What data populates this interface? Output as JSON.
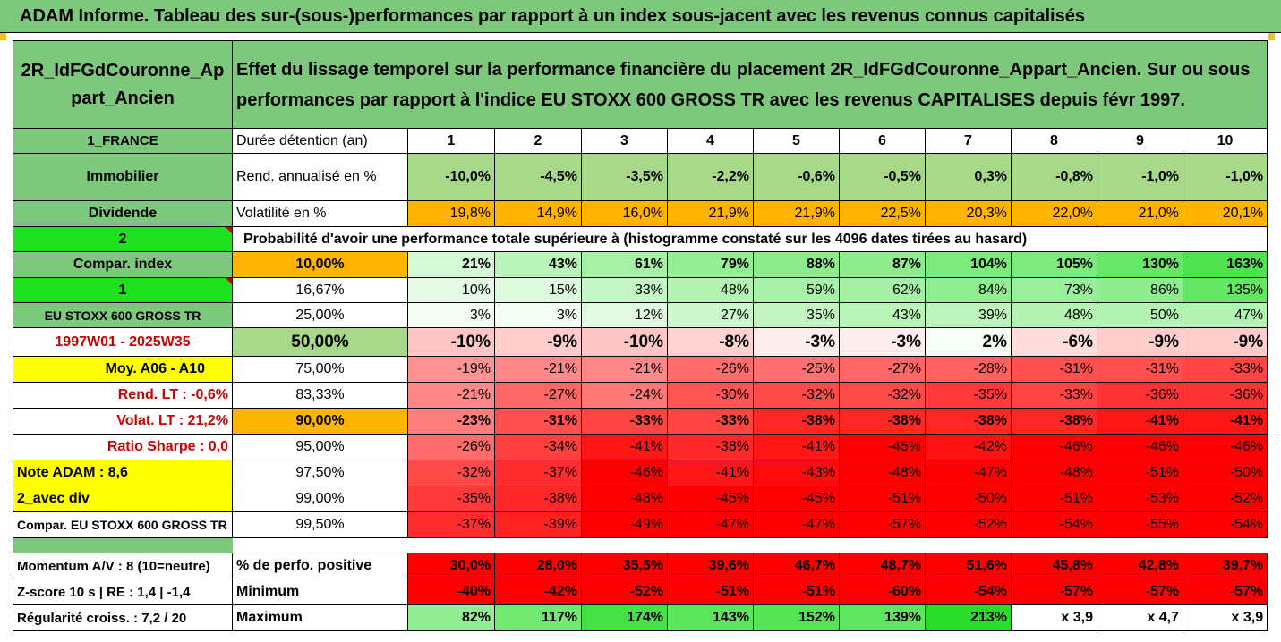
{
  "banner": "ADAM Informe. Tableau des sur-(sous-)performances par rapport à un index sous-jacent avec les revenus connus capitalisés",
  "placement": "2R_IdFGdCouronne_Appart_Ancien",
  "description": "Effet du lissage temporel sur la performance financière du placement 2R_IdFGdCouronne_Appart_Ancien. Sur ou sous performances par rapport à l'indice EU STOXX 600 GROSS TR avec les revenus CAPITALISES depuis févr 1997.",
  "country": "1_FRANCE",
  "duration_label": "Durée détention (an)",
  "durations": [
    "1",
    "2",
    "3",
    "4",
    "5",
    "6",
    "7",
    "8",
    "9",
    "10"
  ],
  "category": "Immobilier",
  "rend_label": "Rend. annualisé en %",
  "rend": [
    "-10,0%",
    "-4,5%",
    "-3,5%",
    "-2,2%",
    "-0,6%",
    "-0,5%",
    "0,3%",
    "-0,8%",
    "-1,0%",
    "-1,0%"
  ],
  "dividend_label": "Dividende",
  "vol_label": "Volatilité en %",
  "vol": [
    "19,8%",
    "14,9%",
    "16,0%",
    "21,9%",
    "21,9%",
    "22,5%",
    "20,3%",
    "22,0%",
    "21,0%",
    "20,1%"
  ],
  "flag2": "2",
  "prob_label": "Probabilité d'avoir une performance totale supérieure à (histogramme constaté sur les 4096 dates tirées au hasard)",
  "flag1": "1",
  "side_labels": [
    "Compar. index",
    "1",
    "EU STOXX 600 GROSS TR",
    "1997W01 - 2025W35",
    "Moy. A06 - A10",
    "Rend. LT :   -0,6%",
    "Volat. LT :   21,2%",
    "Ratio Sharpe :   0,0",
    "Note ADAM : 8,6",
    "2_avec div",
    "Compar. EU STOXX 600 GROSS TR"
  ],
  "prob_rows": [
    {
      "pct": "10,00%",
      "values": [
        "21%",
        "43%",
        "61%",
        "79%",
        "88%",
        "87%",
        "104%",
        "105%",
        "130%",
        "163%"
      ]
    },
    {
      "pct": "16,67%",
      "values": [
        "10%",
        "15%",
        "33%",
        "48%",
        "59%",
        "62%",
        "84%",
        "73%",
        "86%",
        "135%"
      ]
    },
    {
      "pct": "25,00%",
      "values": [
        "3%",
        "3%",
        "12%",
        "27%",
        "35%",
        "43%",
        "39%",
        "48%",
        "50%",
        "47%"
      ]
    },
    {
      "pct": "50,00%",
      "values": [
        "-10%",
        "-9%",
        "-10%",
        "-8%",
        "-3%",
        "-3%",
        "2%",
        "-6%",
        "-9%",
        "-9%"
      ]
    },
    {
      "pct": "75,00%",
      "values": [
        "-19%",
        "-21%",
        "-21%",
        "-26%",
        "-25%",
        "-27%",
        "-28%",
        "-31%",
        "-31%",
        "-33%"
      ]
    },
    {
      "pct": "83,33%",
      "values": [
        "-21%",
        "-27%",
        "-24%",
        "-30%",
        "-32%",
        "-32%",
        "-35%",
        "-33%",
        "-36%",
        "-36%"
      ]
    },
    {
      "pct": "90,00%",
      "values": [
        "-23%",
        "-31%",
        "-33%",
        "-33%",
        "-38%",
        "-38%",
        "-38%",
        "-38%",
        "-41%",
        "-41%"
      ]
    },
    {
      "pct": "95,00%",
      "values": [
        "-26%",
        "-34%",
        "-41%",
        "-38%",
        "-41%",
        "-45%",
        "-42%",
        "-46%",
        "-46%",
        "-46%"
      ]
    },
    {
      "pct": "97,50%",
      "values": [
        "-32%",
        "-37%",
        "-46%",
        "-41%",
        "-43%",
        "-48%",
        "-47%",
        "-48%",
        "-51%",
        "-50%"
      ]
    },
    {
      "pct": "99,00%",
      "values": [
        "-35%",
        "-38%",
        "-48%",
        "-45%",
        "-45%",
        "-51%",
        "-50%",
        "-51%",
        "-53%",
        "-52%"
      ]
    },
    {
      "pct": "99,50%",
      "values": [
        "-37%",
        "-39%",
        "-49%",
        "-47%",
        "-47%",
        "-57%",
        "-52%",
        "-54%",
        "-55%",
        "-54%"
      ]
    }
  ],
  "momentum_label": "Momentum A/V : 8 (10=neutre)",
  "positive_label": "% de perfo. positive",
  "positive": [
    "30,0%",
    "28,0%",
    "35,5%",
    "39,6%",
    "46,7%",
    "48,7%",
    "51,6%",
    "45,8%",
    "42,8%",
    "39,7%"
  ],
  "zscore_label": "Z-score 10 s  |  RE : 1,4  |  -1,4",
  "min_label": "Minimum",
  "minimum": [
    "-40%",
    "-42%",
    "-52%",
    "-51%",
    "-51%",
    "-60%",
    "-54%",
    "-57%",
    "-57%",
    "-57%"
  ],
  "regularity_label": "Régularité croiss. : 7,2 / 20",
  "max_label": "Maximum",
  "maximum": [
    "82%",
    "117%",
    "174%",
    "143%",
    "152%",
    "139%",
    "213%",
    "x 3,9",
    "x 4,7",
    "x 3,9"
  ],
  "colors": {
    "green": "#7ec87e",
    "bright_green": "#1ee01e",
    "orange": "#ffb400",
    "yellow": "#ffff00",
    "red": "#ff0000",
    "text_red": "#cc0000"
  }
}
